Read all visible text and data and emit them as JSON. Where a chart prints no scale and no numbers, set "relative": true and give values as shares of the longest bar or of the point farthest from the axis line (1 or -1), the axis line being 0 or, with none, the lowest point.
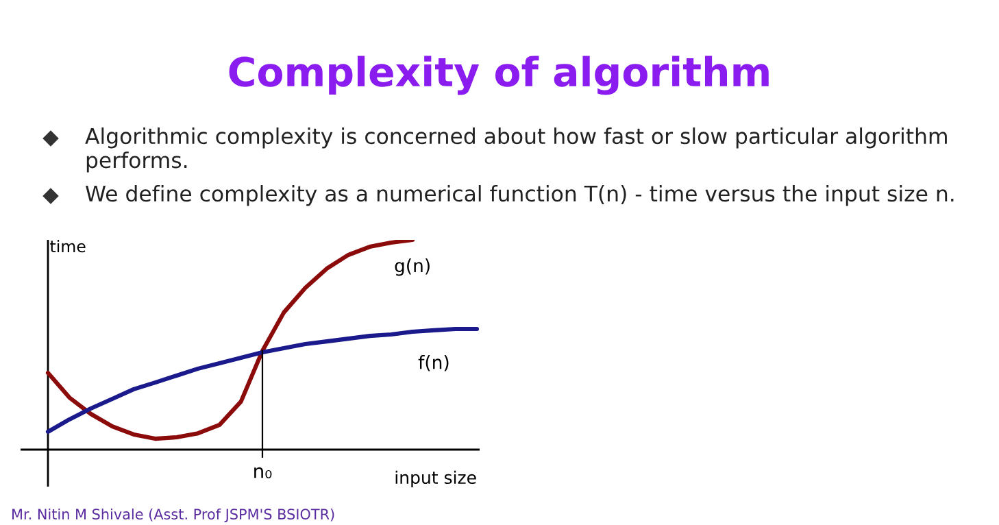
{
  "chart_data": {
    "type": "line",
    "title": "Complexity of algorithm",
    "xlabel": "input size",
    "ylabel": "time",
    "relative": true,
    "legend": false,
    "categories": [
      null,
      null,
      null,
      null,
      null,
      null,
      null,
      null,
      null,
      null,
      null,
      null,
      null,
      null,
      null,
      null,
      null,
      null,
      null,
      null,
      null
    ],
    "series": [
      {
        "name": "g(n)",
        "color": "#8b0a0a",
        "values": [
          0.366,
          0.248,
          0.17,
          0.111,
          0.072,
          0.052,
          0.059,
          0.078,
          0.118,
          0.229,
          0.471,
          0.654,
          0.771,
          0.863,
          0.928,
          0.967,
          0.987,
          1,
          null,
          null,
          null
        ]
      },
      {
        "name": "f(n)",
        "color": "#1a1a8c",
        "values": [
          0.085,
          0.144,
          0.196,
          0.242,
          0.288,
          0.32,
          0.353,
          0.386,
          0.412,
          0.438,
          0.464,
          0.484,
          0.503,
          0.516,
          0.529,
          0.542,
          0.549,
          0.562,
          0.569,
          0.575,
          0.575
        ]
      }
    ],
    "annotations": [
      "Algorithmic complexity is concerned about how fast or slow particular algorithm performs.",
      "We define complexity as a numerical function T(n) - time versus the input size n.",
      "n₀",
      "Mr. Nitin M Shivale (Asst. Prof JSPM'S BSIOTR)"
    ]
  }
}
